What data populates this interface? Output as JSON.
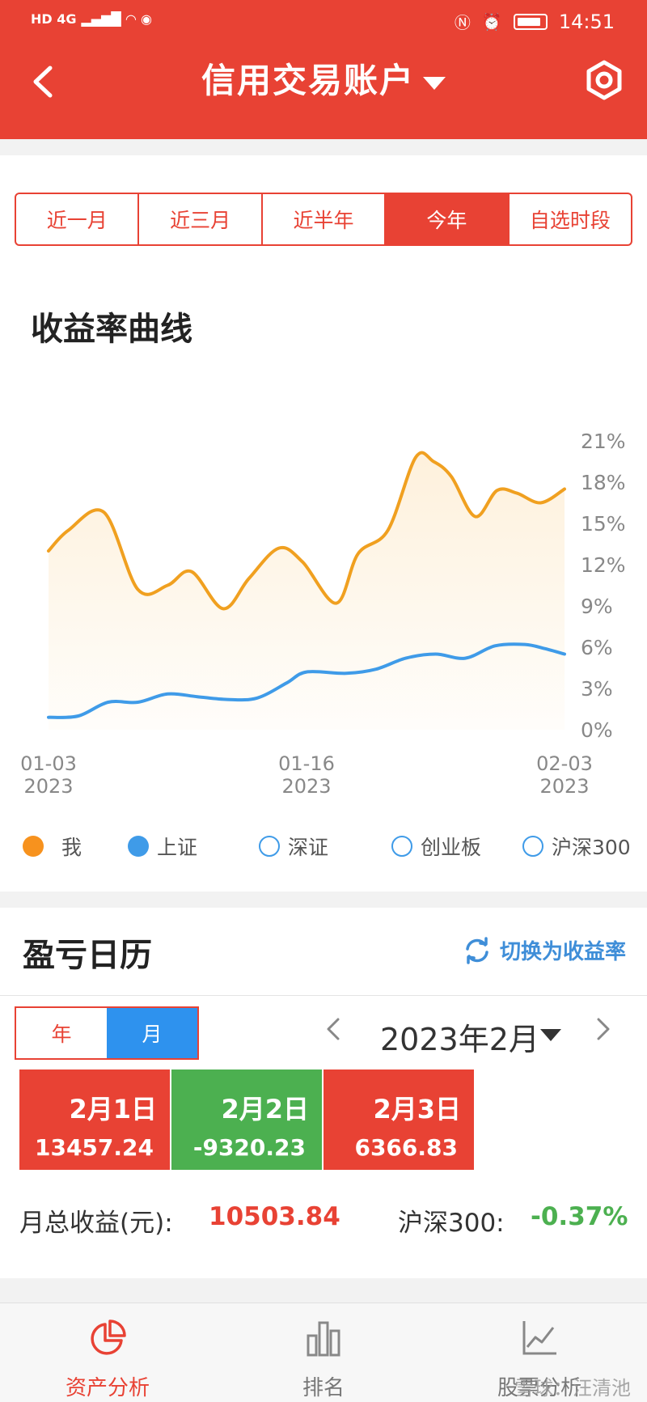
{
  "status_bar": {
    "left": "HD 4G",
    "time": "14:51"
  },
  "header": {
    "title": "信用交易账户",
    "back_icon": "chevron-left-icon",
    "settings_icon": "gear-icon",
    "accent": "#e84234"
  },
  "period_tabs": [
    {
      "label": "近一月",
      "active": false
    },
    {
      "label": "近三月",
      "active": false
    },
    {
      "label": "近半年",
      "active": false
    },
    {
      "label": "今年",
      "active": true
    },
    {
      "label": "自选时段",
      "active": false
    }
  ],
  "chart_section": {
    "title": "收益率曲线"
  },
  "chart_data": {
    "type": "line",
    "x_ticks": [
      {
        "date": "01-03",
        "year": "2023",
        "x": 0
      },
      {
        "date": "01-16",
        "year": "2023",
        "x": 13
      },
      {
        "date": "02-03",
        "year": "2023",
        "x": 26
      }
    ],
    "y_ticks": [
      "0%",
      "3%",
      "6%",
      "9%",
      "12%",
      "15%",
      "18%",
      "21%"
    ],
    "ylim": [
      0,
      21
    ],
    "xlim": [
      0,
      26
    ],
    "series": [
      {
        "name": "我",
        "color": "#f0a020",
        "x": [
          0,
          1,
          2.8,
          4.5,
          6,
          7.2,
          8.8,
          10.1,
          11.6,
          12.8,
          14.5,
          15.6,
          17.1,
          18.5,
          19.4,
          20.3,
          21.5,
          22.6,
          23.6,
          24.8,
          26
        ],
        "values": [
          13.0,
          14.5,
          15.8,
          10.2,
          10.5,
          11.5,
          8.8,
          11.0,
          13.2,
          12.2,
          9.2,
          12.8,
          14.5,
          19.8,
          19.5,
          18.4,
          15.5,
          17.4,
          17.2,
          16.5,
          17.5
        ]
      },
      {
        "name": "上证",
        "color": "#3f9be8",
        "x": [
          0,
          1.5,
          3,
          4.5,
          6,
          7.5,
          9,
          10.5,
          12,
          13,
          15,
          16.5,
          18,
          19.5,
          21,
          22.5,
          24,
          25,
          26
        ],
        "values": [
          0.9,
          1.0,
          2.0,
          2.0,
          2.6,
          2.4,
          2.2,
          2.3,
          3.4,
          4.2,
          4.1,
          4.4,
          5.2,
          5.5,
          5.2,
          6.1,
          6.2,
          5.9,
          5.5
        ]
      }
    ]
  },
  "legend": [
    {
      "label": "我",
      "color": "#f0a020",
      "style": "filled"
    },
    {
      "label": "上证",
      "color": "#3f9be8",
      "style": "filled"
    },
    {
      "label": "深证",
      "color": "#3f9be8",
      "style": "hollow"
    },
    {
      "label": "创业板",
      "color": "#3f9be8",
      "style": "hollow"
    },
    {
      "label": "沪深300",
      "color": "#3f9be8",
      "style": "hollow"
    }
  ],
  "calendar": {
    "title": "盈亏日历",
    "switch_label": "切换为收益率",
    "switch_icon": "refresh-icon",
    "year_label": "年",
    "month_label": "月",
    "current_month": "2023年2月",
    "days": [
      {
        "date": "2月1日",
        "value": "13457.24",
        "trend": "up"
      },
      {
        "date": "2月2日",
        "value": "-9320.23",
        "trend": "down"
      },
      {
        "date": "2月3日",
        "value": "6366.83",
        "trend": "up"
      }
    ],
    "monthly_label": "月总收益(元):",
    "monthly_value": "10503.84",
    "benchmark_label": "沪深300:",
    "benchmark_value": "-0.37%"
  },
  "bottom_nav": [
    {
      "label": "资产分析",
      "icon": "pie-chart-icon",
      "active": true
    },
    {
      "label": "排名",
      "icon": "bar-chart-icon",
      "active": false
    },
    {
      "label": "股票分析",
      "icon": "line-chart-icon",
      "active": false
    }
  ],
  "watermark": "雪球：汪清池"
}
